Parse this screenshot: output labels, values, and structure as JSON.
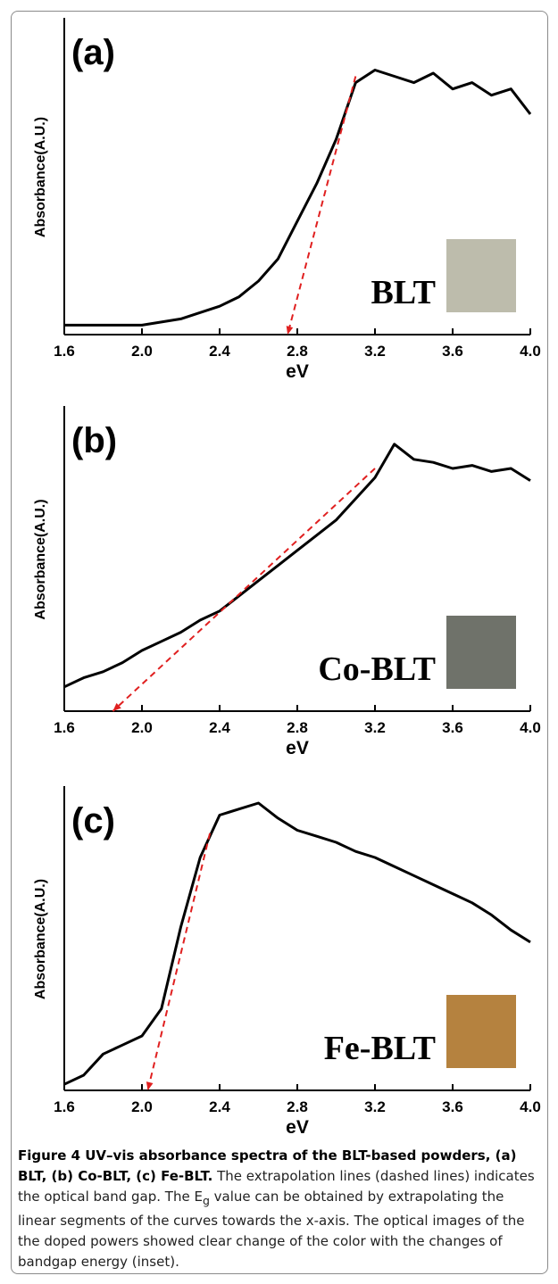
{
  "chart_data": [
    {
      "type": "line",
      "panel_label": "(a)",
      "sample": "BLT",
      "inset_color": "#bdbcac",
      "x_label": "eV",
      "y_label": "Absorbance(A.U.)",
      "x": [
        1.6,
        1.7,
        1.8,
        1.9,
        2.0,
        2.1,
        2.2,
        2.3,
        2.4,
        2.5,
        2.6,
        2.7,
        2.8,
        2.9,
        3.0,
        3.1,
        3.2,
        3.3,
        3.4,
        3.5,
        3.6,
        3.7,
        3.8,
        3.9,
        4.0
      ],
      "xlim": [
        1.6,
        4.0
      ],
      "xticks": [
        1.6,
        {
          "value": 2.0,
          "label": "2.0"
        },
        2.4,
        2.8,
        3.2,
        3.6,
        {
          "value": 4.0,
          "label": "4.0"
        }
      ],
      "ylim": [
        0,
        100
      ],
      "series": [
        {
          "color": "#000000",
          "values": [
            3,
            3,
            3,
            3,
            3,
            4,
            5,
            7,
            9,
            12,
            17,
            24,
            36,
            48,
            62,
            80,
            84,
            82,
            80,
            83,
            78,
            80,
            76,
            78,
            70
          ]
        },
        {
          "color": "#e02020",
          "dashed": true,
          "x": [
            3.1,
            2.75
          ],
          "values": [
            82,
            0
          ]
        }
      ]
    },
    {
      "type": "line",
      "panel_label": "(b)",
      "sample": "Co-BLT",
      "inset_color": "#6f726a",
      "x_label": "eV",
      "y_label": "Absorbance(A.U.)",
      "x": [
        1.6,
        1.7,
        1.8,
        1.9,
        2.0,
        2.1,
        2.2,
        2.3,
        2.4,
        2.5,
        2.6,
        2.7,
        2.8,
        2.9,
        3.0,
        3.1,
        3.2,
        3.3,
        3.4,
        3.5,
        3.6,
        3.7,
        3.8,
        3.9,
        4.0
      ],
      "xlim": [
        1.6,
        4.0
      ],
      "xticks": [
        1.6,
        {
          "value": 2.0,
          "label": "2.0"
        },
        2.4,
        2.8,
        3.2,
        3.6,
        {
          "value": 4.0,
          "label": "4.0"
        }
      ],
      "ylim": [
        0,
        100
      ],
      "series": [
        {
          "color": "#000000",
          "values": [
            8,
            11,
            13,
            16,
            20,
            23,
            26,
            30,
            33,
            38,
            43,
            48,
            53,
            58,
            63,
            70,
            77,
            88,
            83,
            82,
            80,
            81,
            79,
            80,
            76
          ]
        },
        {
          "color": "#e02020",
          "dashed": true,
          "x": [
            3.2,
            1.85
          ],
          "values": [
            80,
            0
          ]
        }
      ]
    },
    {
      "type": "line",
      "panel_label": "(c)",
      "sample": "Fe-BLT",
      "inset_color": "#b5823f",
      "x_label": "eV",
      "y_label": "Absorbance(A.U.)",
      "x": [
        1.6,
        1.7,
        1.8,
        1.9,
        2.0,
        2.1,
        2.2,
        2.3,
        2.4,
        2.5,
        2.6,
        2.7,
        2.8,
        2.9,
        3.0,
        3.1,
        3.2,
        3.3,
        3.4,
        3.5,
        3.6,
        3.7,
        3.8,
        3.9,
        4.0
      ],
      "xlim": [
        1.6,
        4.0
      ],
      "xticks": [
        1.6,
        {
          "value": 2.0,
          "label": "2.0"
        },
        2.4,
        2.8,
        3.2,
        3.6,
        {
          "value": 4.0,
          "label": "4.0"
        }
      ],
      "ylim": [
        0,
        100
      ],
      "series": [
        {
          "color": "#000000",
          "values": [
            2,
            5,
            12,
            15,
            18,
            27,
            54,
            77,
            91,
            93,
            95,
            90,
            86,
            84,
            82,
            79,
            77,
            74,
            71,
            68,
            65,
            62,
            58,
            53,
            49
          ]
        },
        {
          "color": "#e02020",
          "dashed": true,
          "x": [
            2.35,
            2.03
          ],
          "values": [
            85,
            0
          ]
        }
      ]
    }
  ],
  "caption": {
    "title": "Figure 4 UV–vis absorbance spectra of the BLT-based powders, (a) BLT, (b) Co-BLT, (c) Fe-BLT.",
    "text_before": "The extrapolation lines (dashed lines) indicates the optical band gap. The E",
    "subscript": "g",
    "text_after": " value can be obtained by extrapolating the linear segments of the curves towards the x-axis. The optical images of the the doped powers showed clear change of the color with the changes of bandgap energy (inset)."
  }
}
